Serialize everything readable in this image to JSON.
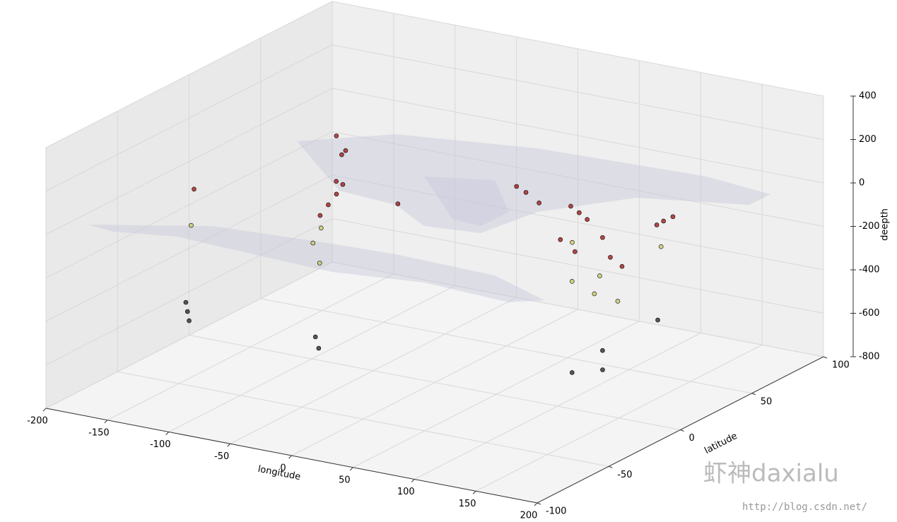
{
  "chart_data": {
    "type": "scatter3d",
    "xlabel": "longitude",
    "ylabel": "latitude",
    "zlabel": "deepth",
    "xlim": [
      -200,
      200
    ],
    "ylim": [
      -100,
      100
    ],
    "zlim": [
      -800,
      400
    ],
    "xticks": [
      -200,
      -150,
      -100,
      -50,
      0,
      50,
      100,
      150,
      200
    ],
    "yticks": [
      -100,
      -50,
      0,
      50,
      100
    ],
    "zticks": [
      -800,
      -600,
      -400,
      -200,
      0,
      200,
      400
    ],
    "grid": true,
    "series": [
      {
        "color": "#a01010",
        "x": [
          142,
          140,
          145,
          125,
          120,
          100,
          95,
          85,
          70,
          50,
          30,
          20,
          -120,
          -125,
          -150,
          -70,
          -75,
          -80,
          -100,
          -90,
          -175,
          170,
          150,
          -30
        ],
        "y": [
          38,
          35,
          42,
          10,
          -5,
          2,
          25,
          28,
          35,
          30,
          38,
          40,
          38,
          45,
          60,
          -20,
          -10,
          0,
          17,
          13,
          -18,
          -15,
          -6,
          0
        ],
        "z": [
          -30,
          -40,
          -20,
          -30,
          -50,
          -40,
          -30,
          -20,
          -30,
          -20,
          -20,
          -10,
          -10,
          -20,
          -30,
          -40,
          -30,
          -20,
          -40,
          -30,
          -40,
          -30,
          -40,
          -10
        ]
      },
      {
        "color": "#c8c864",
        "x": [
          140,
          125,
          120,
          -70,
          -175,
          170,
          70,
          -68,
          130,
          -75
        ],
        "y": [
          38,
          8,
          -7,
          -25,
          -20,
          -18,
          36,
          -22,
          0,
          -15
        ],
        "z": [
          -150,
          -200,
          -180,
          -150,
          -200,
          -180,
          -200,
          -250,
          -250,
          -120
        ]
      },
      {
        "color": "#222222",
        "x": [
          -178,
          -177,
          -179,
          135,
          120,
          -68,
          160,
          125,
          -63
        ],
        "y": [
          -20,
          -22,
          -18,
          40,
          -7,
          -25,
          -20,
          10,
          -27
        ],
        "z": [
          -600,
          -550,
          -650,
          -500,
          -600,
          -580,
          -500,
          -550,
          -620
        ]
      }
    ]
  },
  "watermark": {
    "brand": "虾神daxialu",
    "url": "http://blog.csdn.net/"
  }
}
